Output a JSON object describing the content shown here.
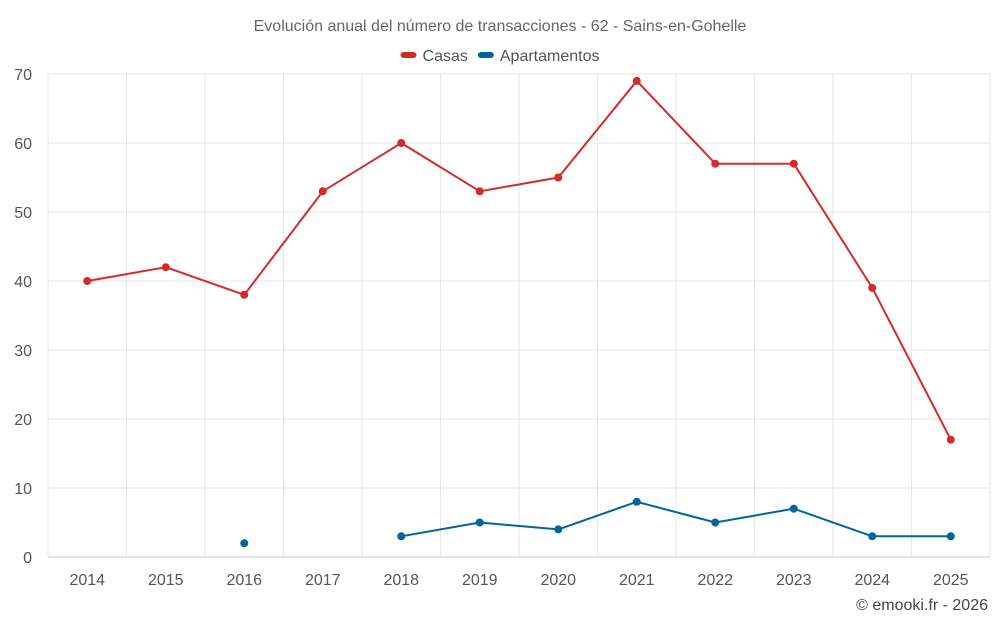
{
  "chart_data": {
    "type": "line",
    "title": "Evolución anual del número de transacciones - 62 - Sains-en-Gohelle",
    "categories": [
      "2014",
      "2015",
      "2016",
      "2017",
      "2018",
      "2019",
      "2020",
      "2021",
      "2022",
      "2023",
      "2024",
      "2025"
    ],
    "series": [
      {
        "name": "Casas",
        "color": "#d42a2a",
        "values": [
          40,
          42,
          38,
          53,
          60,
          53,
          55,
          69,
          57,
          57,
          39,
          17
        ]
      },
      {
        "name": "Apartamentos",
        "color": "#00659c",
        "values": [
          null,
          null,
          2,
          null,
          3,
          5,
          4,
          8,
          5,
          7,
          3,
          3
        ]
      }
    ],
    "ylim": [
      0,
      70
    ],
    "yticks": [
      "0",
      "10",
      "20",
      "30",
      "40",
      "50",
      "60",
      "70"
    ],
    "xlabel": "",
    "ylabel": "",
    "grid": true,
    "legend": "top-center"
  },
  "credits": "© emooki.fr - 2026"
}
